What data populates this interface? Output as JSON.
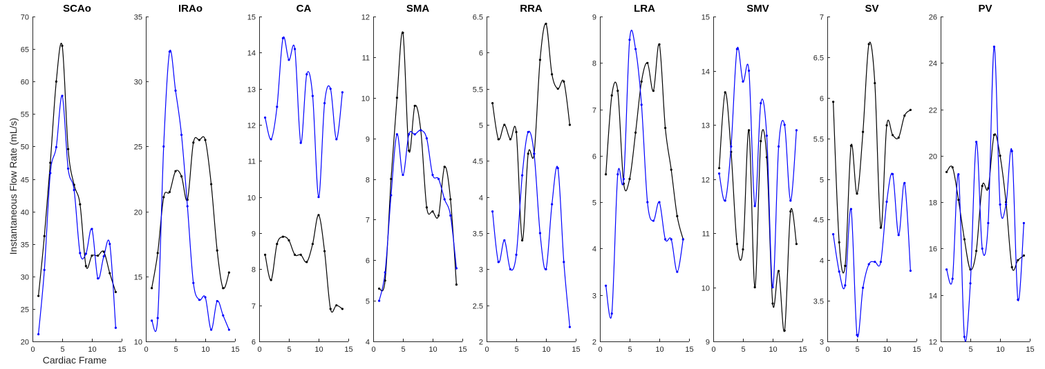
{
  "figure": {
    "ylabel": "Instantaneous Flow Rate (mL/s)",
    "xlabel": "Cardiac Frame"
  },
  "colors": {
    "black_series": "#000000",
    "blue_series": "#0000ff"
  },
  "chart_data": [
    {
      "type": "line",
      "title": "SCAo",
      "x": [
        1,
        2,
        3,
        4,
        5,
        6,
        7,
        8,
        9,
        10,
        11,
        12,
        13,
        14
      ],
      "xlim": [
        0,
        15
      ],
      "xticks": [
        "0",
        "5",
        "10",
        "15"
      ],
      "ylim": [
        20,
        70
      ],
      "yticks": [
        "20",
        "25",
        "30",
        "35",
        "40",
        "45",
        "50",
        "55",
        "60",
        "65",
        "70"
      ],
      "series": [
        {
          "color": "#000000",
          "values": [
            27.0,
            36.2,
            47.5,
            60.0,
            65.5,
            49.6,
            44.1,
            41.1,
            31.6,
            33.2,
            33.2,
            33.8,
            30.5,
            27.6
          ]
        },
        {
          "color": "#0000ff",
          "values": [
            21.1,
            31.0,
            45.9,
            49.9,
            57.8,
            46.6,
            43.3,
            33.6,
            33.5,
            37.3,
            29.7,
            33.1,
            35.0,
            22.1
          ]
        }
      ]
    },
    {
      "type": "line",
      "title": "IRAo",
      "x": [
        1,
        2,
        3,
        4,
        5,
        6,
        7,
        8,
        9,
        10,
        11,
        12,
        13,
        14
      ],
      "xlim": [
        0,
        15
      ],
      "xticks": [
        "0",
        "5",
        "10",
        "15"
      ],
      "ylim": [
        10,
        35
      ],
      "yticks": [
        "10",
        "15",
        "20",
        "25",
        "30",
        "35"
      ],
      "series": [
        {
          "color": "#000000",
          "values": [
            14.1,
            16.8,
            21.1,
            21.5,
            23.1,
            22.7,
            20.9,
            25.3,
            25.5,
            25.5,
            22.1,
            17.0,
            14.1,
            15.3
          ]
        },
        {
          "color": "#0000ff",
          "values": [
            11.6,
            11.8,
            25.0,
            32.3,
            29.3,
            25.9,
            20.4,
            14.5,
            13.2,
            13.4,
            10.9,
            13.1,
            12.0,
            10.9
          ]
        }
      ]
    },
    {
      "type": "line",
      "title": "CA",
      "x": [
        1,
        2,
        3,
        4,
        5,
        6,
        7,
        8,
        9,
        10,
        11,
        12,
        13,
        14
      ],
      "xlim": [
        0,
        15
      ],
      "xticks": [
        "0",
        "5",
        "10",
        "15"
      ],
      "ylim": [
        6,
        15
      ],
      "yticks": [
        "6",
        "7",
        "8",
        "9",
        "10",
        "11",
        "12",
        "13",
        "14",
        "15"
      ],
      "series": [
        {
          "color": "#000000",
          "values": [
            8.4,
            7.7,
            8.7,
            8.9,
            8.8,
            8.4,
            8.4,
            8.2,
            8.7,
            9.5,
            8.5,
            6.9,
            7.0,
            6.9
          ]
        },
        {
          "color": "#0000ff",
          "values": [
            12.2,
            11.6,
            12.5,
            14.4,
            13.8,
            14.1,
            11.5,
            13.4,
            12.8,
            10.0,
            12.6,
            13.0,
            11.6,
            12.9
          ]
        }
      ]
    },
    {
      "type": "line",
      "title": "SMA",
      "x": [
        1,
        2,
        3,
        4,
        5,
        6,
        7,
        8,
        9,
        10,
        11,
        12,
        13,
        14
      ],
      "xlim": [
        0,
        15
      ],
      "xticks": [
        "0",
        "5",
        "10",
        "15"
      ],
      "ylim": [
        4,
        12
      ],
      "yticks": [
        "4",
        "5",
        "6",
        "7",
        "8",
        "9",
        "10",
        "11",
        "12"
      ],
      "series": [
        {
          "color": "#000000",
          "values": [
            5.3,
            5.5,
            8.0,
            10.0,
            11.6,
            8.7,
            9.8,
            9.2,
            7.3,
            7.2,
            7.1,
            8.3,
            7.5,
            5.4
          ]
        },
        {
          "color": "#0000ff",
          "values": [
            5.0,
            5.7,
            7.6,
            9.1,
            8.1,
            9.1,
            9.1,
            9.2,
            9.0,
            8.1,
            8.0,
            7.5,
            7.1,
            5.8
          ]
        }
      ]
    },
    {
      "type": "line",
      "title": "RRA",
      "x": [
        1,
        2,
        3,
        4,
        5,
        6,
        7,
        8,
        9,
        10,
        11,
        12,
        13,
        14
      ],
      "xlim": [
        0,
        15
      ],
      "xticks": [
        "0",
        "5",
        "10",
        "15"
      ],
      "ylim": [
        2,
        6.5
      ],
      "yticks": [
        "2",
        "2.5",
        "3",
        "3.5",
        "4",
        "4.5",
        "5",
        "5.5",
        "6",
        "6.5"
      ],
      "series": [
        {
          "color": "#000000",
          "values": [
            5.3,
            4.8,
            5.0,
            4.8,
            4.9,
            3.4,
            4.6,
            4.6,
            5.9,
            6.4,
            5.7,
            5.5,
            5.6,
            5.0
          ]
        },
        {
          "color": "#0000ff",
          "values": [
            3.8,
            3.1,
            3.4,
            3.0,
            3.2,
            4.3,
            4.9,
            4.6,
            3.5,
            3.0,
            3.9,
            4.4,
            3.1,
            2.2
          ]
        }
      ]
    },
    {
      "type": "line",
      "title": "LRA",
      "x": [
        1,
        2,
        3,
        4,
        5,
        6,
        7,
        8,
        9,
        10,
        11,
        12,
        13,
        14
      ],
      "xlim": [
        0,
        15
      ],
      "xticks": [
        "0",
        "5",
        "10",
        "15"
      ],
      "ylim": [
        2,
        9
      ],
      "yticks": [
        "2",
        "3",
        "4",
        "5",
        "6",
        "7",
        "8",
        "9"
      ],
      "series": [
        {
          "color": "#000000",
          "values": [
            5.6,
            7.3,
            7.4,
            5.4,
            5.5,
            6.5,
            7.6,
            8.0,
            7.4,
            8.4,
            6.6,
            5.7,
            4.7,
            4.2
          ]
        },
        {
          "color": "#0000ff",
          "values": [
            3.2,
            2.6,
            5.6,
            5.5,
            8.5,
            8.3,
            7.1,
            5.0,
            4.6,
            5.0,
            4.2,
            4.2,
            3.5,
            4.2
          ]
        }
      ]
    },
    {
      "type": "line",
      "title": "SMV",
      "x": [
        1,
        2,
        3,
        4,
        5,
        6,
        7,
        8,
        9,
        10,
        11,
        12,
        13,
        14
      ],
      "xlim": [
        0,
        15
      ],
      "xticks": [
        "0",
        "5",
        "10",
        "15"
      ],
      "ylim": [
        9,
        15
      ],
      "yticks": [
        "9",
        "10",
        "11",
        "12",
        "13",
        "14",
        "15"
      ],
      "series": [
        {
          "color": "#000000",
          "values": [
            12.2,
            13.6,
            12.5,
            10.8,
            10.7,
            12.9,
            10.0,
            12.7,
            12.4,
            9.7,
            10.3,
            9.2,
            11.4,
            10.8
          ]
        },
        {
          "color": "#0000ff",
          "values": [
            12.1,
            11.6,
            12.6,
            14.4,
            13.8,
            14.0,
            11.5,
            13.4,
            12.8,
            10.0,
            12.6,
            13.0,
            11.6,
            12.9
          ]
        }
      ]
    },
    {
      "type": "line",
      "title": "SV",
      "x": [
        1,
        2,
        3,
        4,
        5,
        6,
        7,
        8,
        9,
        10,
        11,
        12,
        13,
        14
      ],
      "xlim": [
        0,
        15
      ],
      "xticks": [
        "0",
        "5",
        "10",
        "15"
      ],
      "ylim": [
        3,
        7
      ],
      "yticks": [
        "3",
        "3.5",
        "4",
        "4.5",
        "5",
        "5.5",
        "6",
        "6.5",
        "7"
      ],
      "series": [
        {
          "color": "#000000",
          "values": [
            5.95,
            4.22,
            3.93,
            5.41,
            4.82,
            5.58,
            6.66,
            6.18,
            4.4,
            5.66,
            5.54,
            5.51,
            5.78,
            5.85
          ]
        },
        {
          "color": "#0000ff",
          "values": [
            4.32,
            3.86,
            3.69,
            4.63,
            3.08,
            3.66,
            3.95,
            3.98,
            3.98,
            4.72,
            5.06,
            4.31,
            4.95,
            3.87
          ]
        }
      ]
    },
    {
      "type": "line",
      "title": "PV",
      "x": [
        1,
        2,
        3,
        4,
        5,
        6,
        7,
        8,
        9,
        10,
        11,
        12,
        13,
        14
      ],
      "xlim": [
        0,
        15
      ],
      "xticks": [
        "0",
        "5",
        "10",
        "15"
      ],
      "ylim": [
        12,
        26
      ],
      "yticks": [
        "12",
        "14",
        "16",
        "18",
        "20",
        "22",
        "24",
        "26"
      ],
      "series": [
        {
          "color": "#000000",
          "values": [
            19.3,
            19.5,
            18.1,
            16.4,
            15.1,
            15.9,
            18.7,
            18.6,
            20.9,
            20.0,
            18.0,
            15.2,
            15.5,
            15.7
          ]
        },
        {
          "color": "#0000ff",
          "values": [
            15.1,
            14.7,
            19.2,
            12.2,
            14.5,
            20.6,
            16.0,
            17.1,
            24.7,
            17.9,
            17.9,
            20.2,
            13.8,
            17.1
          ]
        }
      ]
    }
  ]
}
